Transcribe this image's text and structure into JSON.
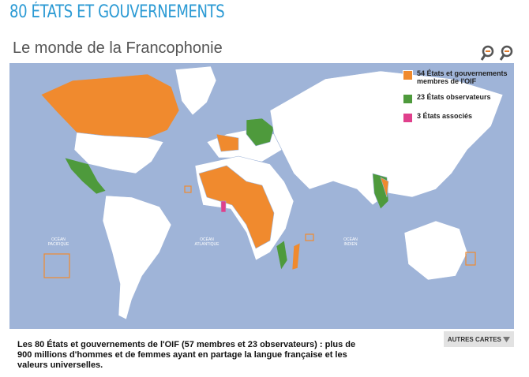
{
  "header": {
    "title": "80 ÉTATS ET GOUVERNEMENTS",
    "subtitle": "Le monde de la Francophonie"
  },
  "legend": [
    {
      "label": "54 États et gouvernements membres de l'OIF",
      "color": "#f08a2e"
    },
    {
      "label": "23 États observateurs",
      "color": "#4e9a3c"
    },
    {
      "label": "3 États associés",
      "color": "#e0408c"
    }
  ],
  "oceans": [
    [
      "OCÉAN",
      "PACIFIQUE"
    ],
    [
      "OCÉAN",
      "ATLANTIQUE"
    ],
    [
      "OCÉAN",
      "INDIEN"
    ]
  ],
  "button": "AUTRES CARTES",
  "caption": "Les 80 États et gouvernements de l'OIF (57 membres et 23 observateurs) : plus de 900 millions d'hommes et de femmes ayant en partage la langue française et les valeurs universelles."
}
